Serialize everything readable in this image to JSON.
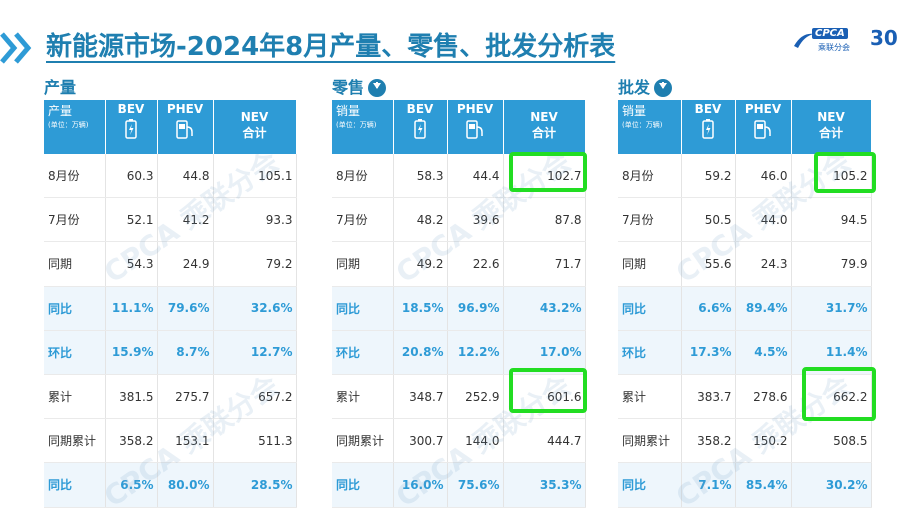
{
  "title": "新能源市场-2024年8月产量、零售、批发分析表",
  "logo": {
    "brand": "CPCA",
    "sub": "乘联分会",
    "anniversary": "30"
  },
  "watermark": "CPCA 乘联分会",
  "highlight_color": "#22dd22",
  "accent_color": "#2e9bd6",
  "columns": {
    "bev": "BEV",
    "phev": "PHEV",
    "nev": "NEV",
    "nev_sub": "合计"
  },
  "row_labels": [
    "8月份",
    "7月份",
    "同期",
    "同比",
    "环比",
    "累计",
    "同期累计",
    "同比"
  ],
  "sections": [
    {
      "label": "产量",
      "has_arrow": false,
      "header_first": "产量",
      "unit": "(单位：万辆)",
      "rows": [
        [
          "60.3",
          "44.8",
          "105.1"
        ],
        [
          "52.1",
          "41.2",
          "93.3"
        ],
        [
          "54.3",
          "24.9",
          "79.2"
        ],
        [
          "11.1%",
          "79.6%",
          "32.6%"
        ],
        [
          "15.9%",
          "8.7%",
          "12.7%"
        ],
        [
          "381.5",
          "275.7",
          "657.2"
        ],
        [
          "358.2",
          "153.1",
          "511.3"
        ],
        [
          "6.5%",
          "80.0%",
          "28.5%"
        ]
      ]
    },
    {
      "label": "零售",
      "has_arrow": true,
      "header_first": "销量",
      "unit": "(单位：万辆)",
      "rows": [
        [
          "58.3",
          "44.4",
          "102.7"
        ],
        [
          "48.2",
          "39.6",
          "87.8"
        ],
        [
          "49.2",
          "22.6",
          "71.7"
        ],
        [
          "18.5%",
          "96.9%",
          "43.2%"
        ],
        [
          "20.8%",
          "12.2%",
          "17.0%"
        ],
        [
          "348.7",
          "252.9",
          "601.6"
        ],
        [
          "300.7",
          "144.0",
          "444.7"
        ],
        [
          "16.0%",
          "75.6%",
          "35.3%"
        ]
      ]
    },
    {
      "label": "批发",
      "has_arrow": true,
      "header_first": "销量",
      "unit": "(单位：万辆)",
      "rows": [
        [
          "59.2",
          "46.0",
          "105.2"
        ],
        [
          "50.5",
          "44.0",
          "94.5"
        ],
        [
          "55.6",
          "24.3",
          "79.9"
        ],
        [
          "6.6%",
          "89.4%",
          "31.7%"
        ],
        [
          "17.3%",
          "4.5%",
          "11.4%"
        ],
        [
          "383.7",
          "278.6",
          "662.2"
        ],
        [
          "358.2",
          "150.2",
          "508.5"
        ],
        [
          "7.1%",
          "85.4%",
          "30.2%"
        ]
      ]
    }
  ]
}
